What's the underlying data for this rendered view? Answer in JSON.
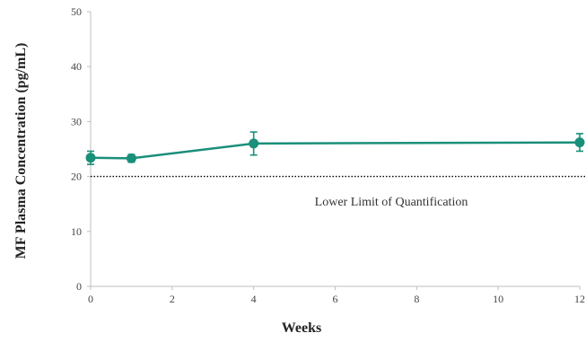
{
  "chart_data": {
    "type": "line",
    "title": "",
    "xlabel": "Weeks",
    "ylabel": "MF Plasma Concentration (pg/mL)",
    "xlim": [
      0,
      12
    ],
    "ylim": [
      0,
      50
    ],
    "x_ticks": [
      0,
      2,
      4,
      6,
      8,
      10,
      12
    ],
    "y_ticks": [
      0,
      10,
      20,
      30,
      40,
      50
    ],
    "grid": false,
    "series": [
      {
        "x": [
          0,
          1,
          4,
          12
        ],
        "y": [
          23.4,
          23.3,
          26.0,
          26.2
        ],
        "error": [
          1.2,
          0.7,
          2.1,
          1.6
        ],
        "color": "#1a8f7a",
        "marker": "circle"
      }
    ],
    "reference_line": {
      "y": 20,
      "style": "dotted",
      "color": "#000000",
      "label": "Lower Limit of Quantification"
    }
  }
}
